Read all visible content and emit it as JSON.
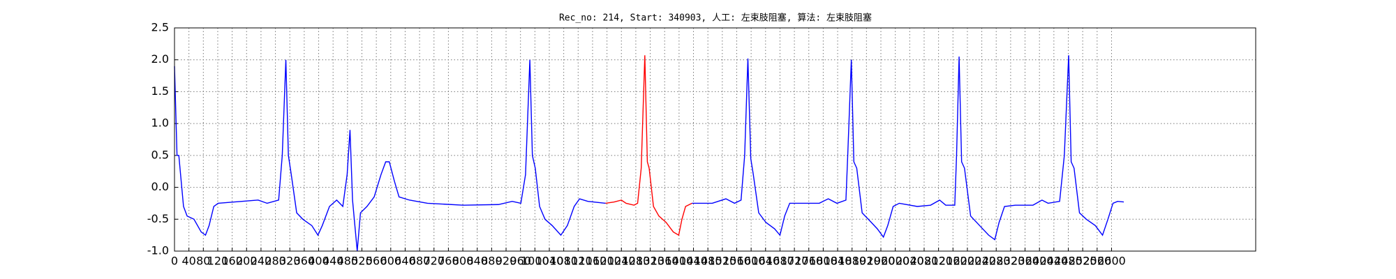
{
  "chart_data": {
    "type": "line",
    "title": "Rec_no: 214, Start: 340903, 人工: 左束肢阻塞, 算法: 左束肢阻塞",
    "xlim": [
      0,
      3000
    ],
    "ylim": [
      -1,
      2.5
    ],
    "xticks": [
      0,
      40,
      80,
      120,
      160,
      200,
      240,
      280,
      320,
      360,
      400,
      440,
      480,
      520,
      560,
      600,
      640,
      680,
      720,
      760,
      800,
      840,
      880,
      920,
      960,
      1000,
      1040,
      1080,
      1120,
      1160,
      1200,
      1240,
      1280,
      1320,
      1360,
      1400,
      1440,
      1480,
      1520,
      1560,
      1600,
      1640,
      1680,
      1720,
      1760,
      1800,
      1840,
      1880,
      1920,
      1960,
      2000,
      2040,
      2080,
      2120,
      2160,
      2200,
      2240,
      2280,
      2320,
      2360,
      2400,
      2440,
      2480,
      2520,
      2560,
      2600
    ],
    "yticks": [
      {
        "value": -1,
        "label": "-1.0"
      },
      -0.5,
      {
        "value": 0,
        "label": "0.0"
      },
      0.5,
      {
        "value": 1,
        "label": "1.0"
      },
      1.5,
      {
        "value": 2,
        "label": "2.0"
      },
      2.5
    ],
    "grid": true,
    "series": [
      {
        "color": "#0000ff",
        "x": [
          0,
          7,
          12,
          25,
          35,
          54,
          74,
          86,
          96,
          109,
          121,
          232,
          257,
          289,
          299,
          309,
          316,
          324,
          339,
          356,
          381,
          398,
          410,
          430,
          450,
          467,
          479,
          487,
          494,
          507,
          516,
          534,
          554,
          573,
          586,
          596,
          610,
          623,
          652,
          702,
          801,
          899,
          937,
          961,
          974,
          986,
          993,
          1001,
          1013,
          1028,
          1048,
          1072,
          1090,
          1109,
          1124,
          1147,
          1196
        ],
        "values": [
          1.9,
          0.5,
          0.5,
          -0.3,
          -0.45,
          -0.5,
          -0.7,
          -0.75,
          -0.6,
          -0.3,
          -0.25,
          -0.2,
          -0.25,
          -0.2,
          0.5,
          2.0,
          0.5,
          0.2,
          -0.4,
          -0.5,
          -0.6,
          -0.75,
          -0.6,
          -0.3,
          -0.2,
          -0.3,
          0.2,
          0.9,
          -0.2,
          -1.0,
          -0.4,
          -0.3,
          -0.15,
          0.2,
          0.4,
          0.4,
          0.1,
          -0.15,
          -0.2,
          -0.25,
          -0.28,
          -0.27,
          -0.22,
          -0.25,
          0.2,
          2.0,
          0.5,
          0.3,
          -0.3,
          -0.5,
          -0.6,
          -0.75,
          -0.6,
          -0.3,
          -0.18,
          -0.22,
          -0.25
        ]
      },
      {
        "color": "#ff0000",
        "x": [
          1196,
          1220,
          1240,
          1253,
          1275,
          1285,
          1295,
          1305,
          1312,
          1317,
          1329,
          1344,
          1364,
          1384,
          1399,
          1408,
          1418,
          1436
        ],
        "values": [
          -0.25,
          -0.23,
          -0.2,
          -0.25,
          -0.28,
          -0.25,
          0.3,
          2.07,
          0.4,
          0.3,
          -0.3,
          -0.45,
          -0.55,
          -0.7,
          -0.75,
          -0.5,
          -0.3,
          -0.25
        ]
      },
      {
        "color": "#0000ff",
        "x": [
          1436,
          1492,
          1530,
          1554,
          1572,
          1582,
          1591,
          1599,
          1606,
          1621,
          1641,
          1665,
          1680,
          1693,
          1707,
          1740,
          1789,
          1814,
          1838,
          1863,
          1868,
          1878,
          1885,
          1893,
          1908,
          1925,
          1950,
          1967,
          1979,
          1994,
          2011,
          2061,
          2098,
          2123,
          2140,
          2165,
          2170,
          2177,
          2184,
          2192,
          2209,
          2234,
          2259,
          2276,
          2288,
          2303,
          2333,
          2382,
          2407,
          2424,
          2456,
          2469,
          2481,
          2488,
          2496,
          2511,
          2530,
          2555,
          2575,
          2590,
          2604,
          2617,
          2634
        ],
        "values": [
          -0.25,
          -0.25,
          -0.18,
          -0.25,
          -0.2,
          0.5,
          2.02,
          0.45,
          0.2,
          -0.4,
          -0.55,
          -0.65,
          -0.75,
          -0.45,
          -0.25,
          -0.25,
          -0.25,
          -0.18,
          -0.25,
          -0.2,
          0.5,
          2.0,
          0.4,
          0.3,
          -0.4,
          -0.5,
          -0.65,
          -0.78,
          -0.6,
          -0.3,
          -0.25,
          -0.3,
          -0.28,
          -0.2,
          -0.28,
          -0.28,
          0.5,
          2.05,
          0.4,
          0.3,
          -0.45,
          -0.6,
          -0.75,
          -0.82,
          -0.55,
          -0.3,
          -0.28,
          -0.28,
          -0.2,
          -0.25,
          -0.22,
          0.5,
          2.07,
          0.4,
          0.3,
          -0.4,
          -0.5,
          -0.6,
          -0.75,
          -0.5,
          -0.25,
          -0.22,
          -0.23
        ]
      }
    ]
  }
}
